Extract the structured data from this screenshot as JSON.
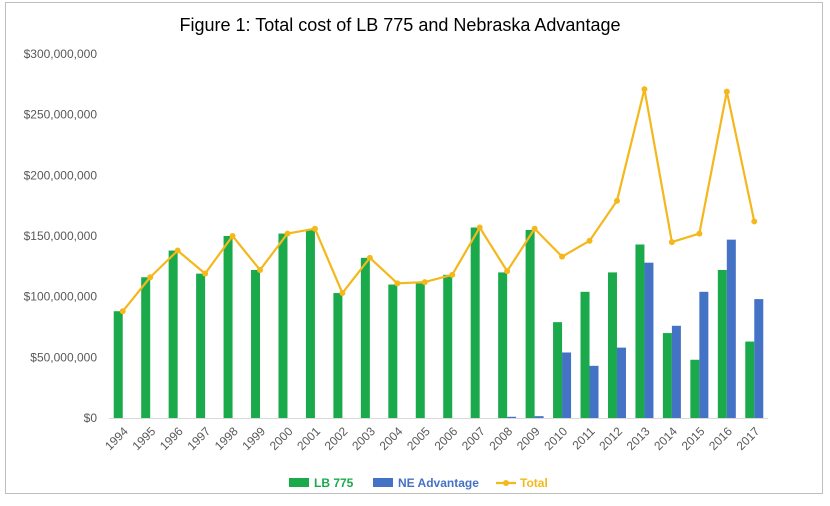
{
  "chart_data": {
    "type": "bar",
    "title": "Figure 1: Total cost of LB 775 and Nebraska Advantage",
    "categories": [
      "1994",
      "1995",
      "1996",
      "1997",
      "1998",
      "1999",
      "2000",
      "2001",
      "2002",
      "2003",
      "2004",
      "2005",
      "2006",
      "2007",
      "2008",
      "2009",
      "2010",
      "2011",
      "2012",
      "2013",
      "2014",
      "2015",
      "2016",
      "2017"
    ],
    "ylim": [
      0,
      300000000
    ],
    "yticks": [
      "$0",
      "$50,000,000",
      "$100,000,000",
      "$150,000,000",
      "$200,000,000",
      "$250,000,000",
      "$300,000,000"
    ],
    "ytick_values": [
      0,
      50000000,
      100000000,
      150000000,
      200000000,
      250000000,
      300000000
    ],
    "grid": false,
    "legend_position": "bottom",
    "series": [
      {
        "name": "LB 775",
        "type": "bar",
        "color": "#1aaa4b",
        "values": [
          88000000,
          116000000,
          138000000,
          119000000,
          150000000,
          122000000,
          152000000,
          155000000,
          103000000,
          132000000,
          110000000,
          111000000,
          118000000,
          157000000,
          120000000,
          155000000,
          79000000,
          104000000,
          120000000,
          143000000,
          70000000,
          48000000,
          122000000,
          63000000
        ]
      },
      {
        "name": "NE Advantage",
        "type": "bar",
        "color": "#4472c4",
        "values": [
          0,
          0,
          0,
          0,
          0,
          0,
          0,
          0,
          0,
          0,
          0,
          0,
          0,
          0,
          1000000,
          1500000,
          54000000,
          43000000,
          58000000,
          128000000,
          76000000,
          104000000,
          147000000,
          98000000
        ]
      },
      {
        "name": "Total",
        "type": "line",
        "color": "#f4b81c",
        "values": [
          88000000,
          116000000,
          138000000,
          119000000,
          150000000,
          122000000,
          152000000,
          156000000,
          103000000,
          132000000,
          111000000,
          112000000,
          118000000,
          157000000,
          121000000,
          156000000,
          133000000,
          146000000,
          179000000,
          271000000,
          145000000,
          152000000,
          269000000,
          162000000
        ]
      }
    ]
  }
}
